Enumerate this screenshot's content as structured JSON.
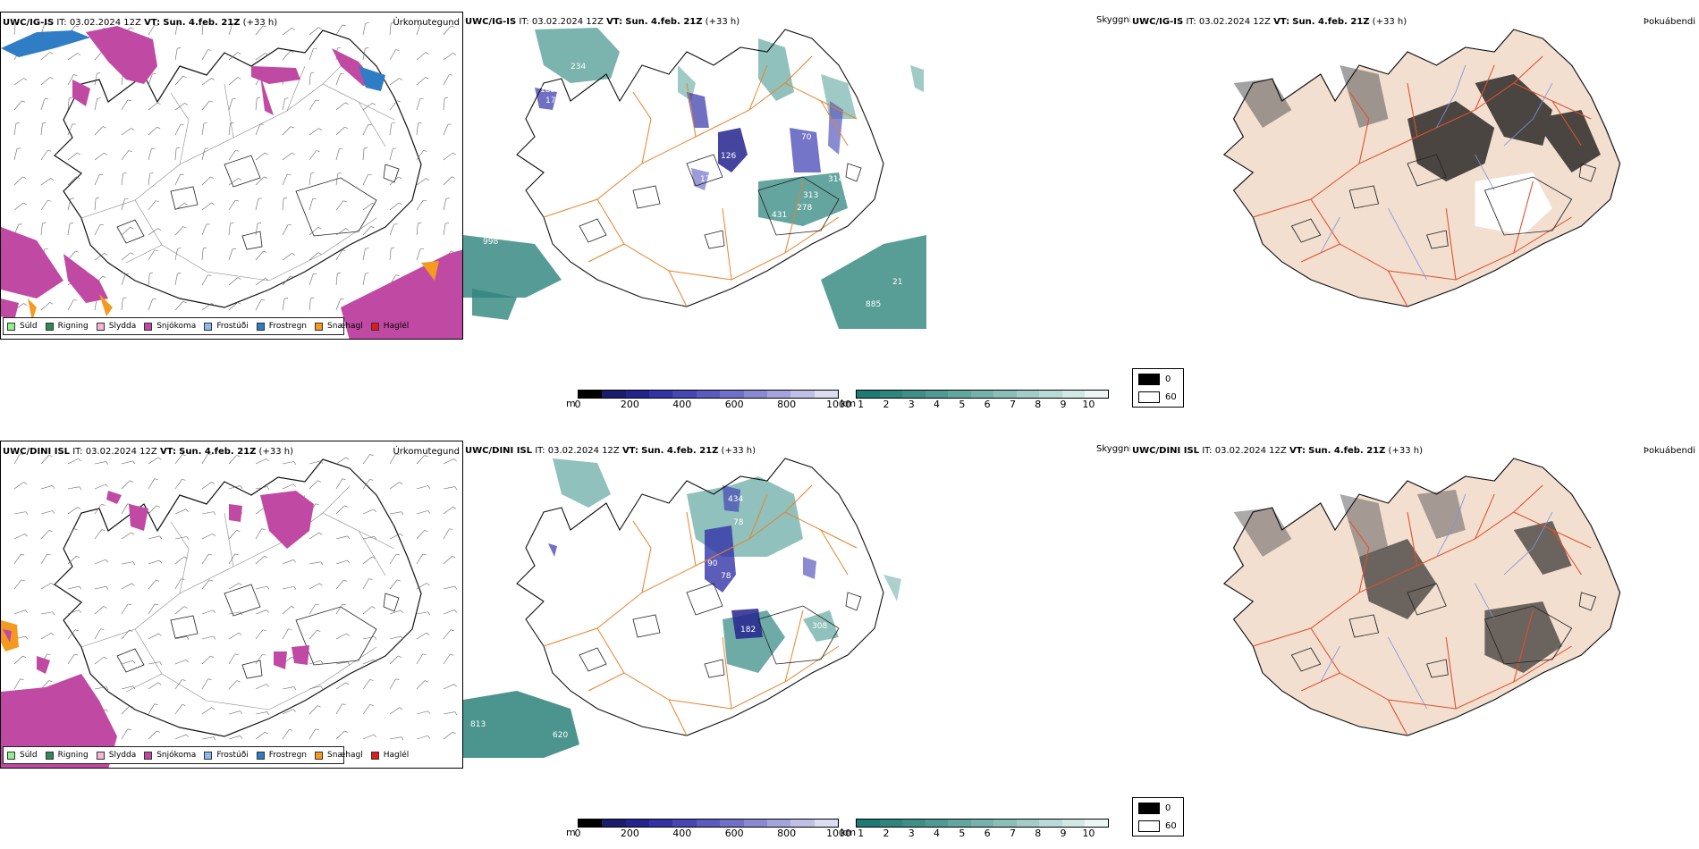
{
  "rows": [
    {
      "id": "top",
      "model": "UWC/IG-IS",
      "it_label": "IT:",
      "it_value": "03.02.2024 12Z",
      "vt_label": "VT:",
      "vt_value": "Sun. 4.feb. 21Z",
      "lead": "(+33 h)",
      "precip_title": "Úrkomutegund",
      "cloud_title": "Skyggni",
      "fog_title": "Þokuábendi",
      "markers": [
        "234",
        "185",
        "17",
        "91",
        "126",
        "17",
        "70",
        "313",
        "314",
        "431",
        "278",
        "998",
        "21",
        "885"
      ]
    },
    {
      "id": "bottom",
      "model": "UWC/DINI ISL",
      "it_label": "IT:",
      "it_value": "03.02.2024 12Z",
      "vt_label": "VT:",
      "vt_value": "Sun. 4.feb. 21Z",
      "lead": "(+33 h)",
      "precip_title": "Úrkomutegund",
      "cloud_title": "Skyggni",
      "fog_title": "Þokuábendi",
      "markers": [
        "434",
        "78",
        "90",
        "78",
        "55",
        "182",
        "308",
        "813",
        "620"
      ]
    }
  ],
  "legend": [
    {
      "label": "Súld",
      "color": "#90ee90"
    },
    {
      "label": "Rigning",
      "color": "#2e8b57"
    },
    {
      "label": "Slydda",
      "color": "#f4b6d2"
    },
    {
      "label": "Snjókoma",
      "color": "#c04aa3"
    },
    {
      "label": "Frostúði",
      "color": "#8db8f0"
    },
    {
      "label": "Frostregn",
      "color": "#2f7dc4"
    },
    {
      "label": "Snæhagl",
      "color": "#f39a1f"
    },
    {
      "label": "Haglél",
      "color": "#e01b1b"
    }
  ],
  "colorbars": {
    "height": {
      "unit": "m",
      "ticks": [
        "0",
        "200",
        "400",
        "600",
        "800",
        "1000"
      ],
      "colors": [
        "#000000",
        "#1c1c6e",
        "#24248f",
        "#3333a8",
        "#4646b5",
        "#5a5abf",
        "#7070c8",
        "#8a8ad2",
        "#a4a4dc",
        "#c0c0e6",
        "#dcdcf2"
      ]
    },
    "visibility": {
      "unit": "km",
      "ticks": [
        "1",
        "2",
        "3",
        "4",
        "5",
        "6",
        "7",
        "8",
        "9",
        "10"
      ],
      "colors": [
        "#1f7a73",
        "#2f847d",
        "#3e8f88",
        "#4f9a93",
        "#61a69f",
        "#75b2ab",
        "#8abfb9",
        "#a1ccc7",
        "#b9dad6",
        "#d2e8e5",
        "#ecf6f4"
      ]
    }
  },
  "fog_legend": {
    "values": [
      "0",
      "60"
    ]
  }
}
